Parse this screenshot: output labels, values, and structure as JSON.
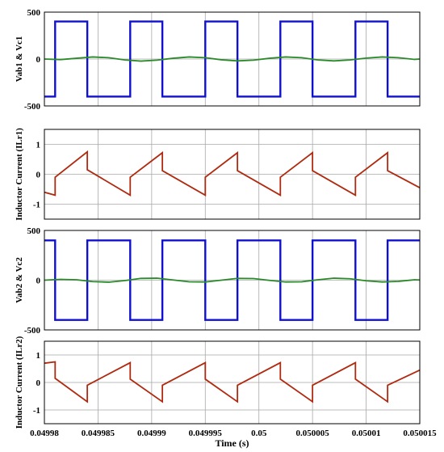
{
  "x_axis": {
    "label": "Time (s)",
    "range": [
      0.04998,
      0.050015
    ],
    "ticks": [
      0.04998,
      0.049985,
      0.04999,
      0.049995,
      0.05,
      0.050005,
      0.05001,
      0.050015
    ],
    "tick_labels": [
      "0.04998",
      "0.049985",
      "0.04999",
      "0.049995",
      "0.05",
      "0.050005",
      "0.05001",
      "0.050015"
    ]
  },
  "colors": {
    "voltage_square": "#1010d0",
    "capacitor_voltage": "#2a8a2a",
    "inductor_current": "#b02a10",
    "grid": "#a8a8a8",
    "frame": "#000000"
  },
  "chart_data": [
    {
      "type": "line",
      "ylabel": "Vab1 & Vc1",
      "ylim": [
        -500,
        500
      ],
      "yticks": [
        -500,
        0,
        500
      ],
      "ytick_labels": [
        "-500",
        "0",
        "500"
      ],
      "grid": true,
      "series": [
        {
          "color_key": "voltage_square",
          "x": [
            0.04998,
            0.049981,
            0.049981,
            0.049984,
            0.049984,
            0.049988,
            0.049988,
            0.049991,
            0.049991,
            0.049995,
            0.049995,
            0.049998,
            0.049998,
            0.050002,
            0.050002,
            0.050005,
            0.050005,
            0.050009,
            0.050009,
            0.050012,
            0.050012,
            0.050015
          ],
          "y": [
            -400,
            -400,
            400,
            400,
            -400,
            -400,
            400,
            400,
            -400,
            -400,
            400,
            400,
            -400,
            -400,
            400,
            400,
            -400,
            -400,
            400,
            400,
            -400,
            -400
          ]
        },
        {
          "color_key": "capacitor_voltage",
          "x": [
            0.04998,
            0.0499815,
            0.049983,
            0.0499845,
            0.049986,
            0.0499875,
            0.049989,
            0.0499905,
            0.049992,
            0.0499935,
            0.049995,
            0.0499965,
            0.049998,
            0.0499995,
            0.050001,
            0.0500025,
            0.050004,
            0.0500055,
            0.050007,
            0.0500085,
            0.05001,
            0.0500115,
            0.050013,
            0.0500145,
            0.050015
          ],
          "y": [
            0,
            -6,
            8,
            22,
            14,
            -10,
            -22,
            -12,
            8,
            22,
            14,
            -8,
            -20,
            -12,
            8,
            22,
            14,
            -10,
            -20,
            -10,
            10,
            22,
            14,
            -4,
            0
          ]
        }
      ]
    },
    {
      "type": "line",
      "ylabel": "Inductor Current (ILr1)",
      "ylim": [
        -1.5,
        1.5
      ],
      "yticks": [
        -1,
        0,
        1
      ],
      "ytick_labels": [
        "-1",
        "0",
        "1"
      ],
      "grid": true,
      "series": [
        {
          "color_key": "inductor_current",
          "x": [
            0.04998,
            0.049981,
            0.049981,
            0.049984,
            0.049984,
            0.049988,
            0.049988,
            0.049991,
            0.049991,
            0.049995,
            0.049995,
            0.049998,
            0.049998,
            0.050002,
            0.050002,
            0.050005,
            0.050005,
            0.050009,
            0.050009,
            0.050012,
            0.050012,
            0.050015
          ],
          "y": [
            -0.6,
            -0.7,
            -0.1,
            0.75,
            0.15,
            -0.7,
            -0.1,
            0.72,
            0.12,
            -0.7,
            -0.1,
            0.72,
            0.12,
            -0.7,
            -0.1,
            0.72,
            0.12,
            -0.7,
            -0.1,
            0.72,
            0.12,
            -0.45
          ]
        }
      ]
    },
    {
      "type": "line",
      "ylabel": "Vab2 & Vc2",
      "ylim": [
        -500,
        500
      ],
      "yticks": [
        -500,
        0,
        500
      ],
      "ytick_labels": [
        "-500",
        "0",
        "500"
      ],
      "grid": true,
      "series": [
        {
          "color_key": "voltage_square",
          "x": [
            0.04998,
            0.049981,
            0.049981,
            0.049984,
            0.049984,
            0.049988,
            0.049988,
            0.049991,
            0.049991,
            0.049995,
            0.049995,
            0.049998,
            0.049998,
            0.050002,
            0.050002,
            0.050005,
            0.050005,
            0.050009,
            0.050009,
            0.050012,
            0.050012,
            0.050015
          ],
          "y": [
            400,
            400,
            -400,
            -400,
            400,
            400,
            -400,
            -400,
            400,
            400,
            -400,
            -400,
            400,
            400,
            -400,
            -400,
            400,
            400,
            -400,
            -400,
            400,
            400
          ]
        },
        {
          "color_key": "capacitor_voltage",
          "x": [
            0.04998,
            0.0499815,
            0.049983,
            0.0499845,
            0.049986,
            0.0499875,
            0.049989,
            0.0499905,
            0.049992,
            0.0499935,
            0.049995,
            0.0499965,
            0.049998,
            0.0499995,
            0.050001,
            0.0500025,
            0.050004,
            0.0500055,
            0.050007,
            0.0500085,
            0.05001,
            0.0500115,
            0.050013,
            0.0500145,
            0.050015
          ],
          "y": [
            0,
            8,
            4,
            -14,
            -20,
            -4,
            18,
            20,
            2,
            -16,
            -18,
            0,
            18,
            16,
            -2,
            -18,
            -16,
            4,
            20,
            14,
            -6,
            -18,
            -12,
            4,
            2
          ]
        }
      ]
    },
    {
      "type": "line",
      "ylabel": "Inductor Current (ILr2)",
      "ylim": [
        -1.5,
        1.5
      ],
      "yticks": [
        -1,
        0,
        1
      ],
      "ytick_labels": [
        "-1",
        "0",
        "1"
      ],
      "grid": true,
      "series": [
        {
          "color_key": "inductor_current",
          "x": [
            0.04998,
            0.049981,
            0.049981,
            0.049984,
            0.049984,
            0.049988,
            0.049988,
            0.049991,
            0.049991,
            0.049995,
            0.049995,
            0.049998,
            0.049998,
            0.050002,
            0.050002,
            0.050005,
            0.050005,
            0.050009,
            0.050009,
            0.050012,
            0.050012,
            0.050015
          ],
          "y": [
            0.7,
            0.75,
            0.15,
            -0.7,
            -0.1,
            0.72,
            0.12,
            -0.7,
            -0.1,
            0.72,
            0.12,
            -0.7,
            -0.1,
            0.72,
            0.12,
            -0.7,
            -0.1,
            0.72,
            0.12,
            -0.7,
            -0.1,
            0.45
          ]
        }
      ]
    }
  ]
}
